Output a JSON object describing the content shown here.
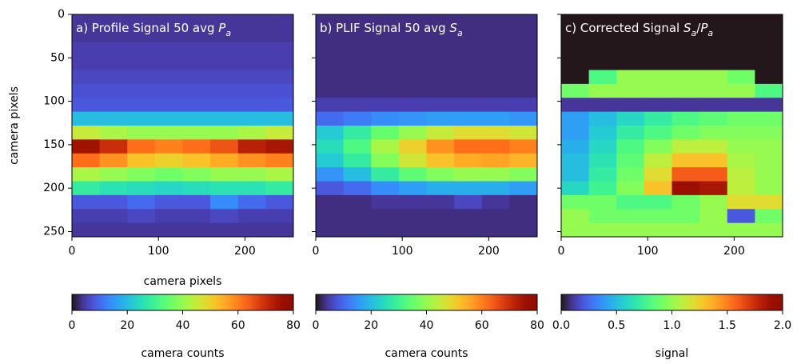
{
  "chart_data": [
    {
      "type": "heatmap",
      "colormap": "turbo",
      "title": [
        {
          "text": "a) Profile Signal 50 avg ",
          "style": "normal"
        },
        {
          "text": "P",
          "style": "italic"
        },
        {
          "text": "a",
          "style": "sub"
        }
      ],
      "xlabel": "camera pixels",
      "ylabel": "camera pixels",
      "ytick_labels": true,
      "x": [
        16,
        48,
        80,
        112,
        144,
        176,
        208,
        240
      ],
      "y": [
        8,
        24,
        40,
        56,
        72,
        88,
        104,
        120,
        136,
        152,
        168,
        184,
        200,
        216,
        232,
        248
      ],
      "values": [
        [
          4,
          4,
          4,
          4,
          4,
          4,
          4,
          4
        ],
        [
          4,
          4,
          4,
          4,
          4,
          4,
          4,
          4
        ],
        [
          5,
          5,
          5,
          5,
          5,
          5,
          5,
          5
        ],
        [
          5,
          5,
          5,
          5,
          5,
          5,
          5,
          5
        ],
        [
          6,
          6,
          6,
          6,
          6,
          6,
          6,
          6
        ],
        [
          7,
          7,
          7,
          7,
          7,
          7,
          7,
          7
        ],
        [
          8,
          8,
          8,
          8,
          8,
          8,
          8,
          8
        ],
        [
          20,
          20,
          20,
          20,
          20,
          20,
          20,
          20
        ],
        [
          45,
          42,
          40,
          40,
          40,
          40,
          42,
          45
        ],
        [
          75,
          70,
          62,
          60,
          62,
          65,
          72,
          74
        ],
        [
          62,
          58,
          52,
          50,
          52,
          55,
          58,
          60
        ],
        [
          42,
          40,
          38,
          36,
          38,
          40,
          40,
          42
        ],
        [
          28,
          26,
          25,
          24,
          25,
          26,
          26,
          28
        ],
        [
          8,
          8,
          10,
          8,
          8,
          14,
          10,
          8
        ],
        [
          5,
          5,
          6,
          5,
          5,
          6,
          5,
          5
        ],
        [
          4,
          4,
          4,
          4,
          4,
          4,
          4,
          4
        ]
      ],
      "xlim": [
        0,
        256
      ],
      "ylim": [
        0,
        256
      ],
      "xticks": [
        0,
        100,
        200
      ],
      "yticks": [
        0,
        50,
        100,
        150,
        200,
        250
      ],
      "clim": [
        0,
        80
      ],
      "cticks": [
        0,
        20,
        40,
        60,
        80
      ],
      "clabel": "camera counts"
    },
    {
      "type": "heatmap",
      "colormap": "turbo",
      "title": [
        {
          "text": "b) PLIF Signal 50 avg ",
          "style": "normal"
        },
        {
          "text": "S",
          "style": "italic"
        },
        {
          "text": "a",
          "style": "sub"
        }
      ],
      "ytick_labels": false,
      "x": [
        16,
        48,
        80,
        112,
        144,
        176,
        208,
        240
      ],
      "y": [
        8,
        24,
        40,
        56,
        72,
        88,
        104,
        120,
        136,
        152,
        168,
        184,
        200,
        216,
        232,
        248
      ],
      "values": [
        [
          3,
          3,
          3,
          3,
          3,
          3,
          3,
          3
        ],
        [
          3,
          3,
          3,
          3,
          3,
          3,
          3,
          3
        ],
        [
          3,
          3,
          3,
          3,
          3,
          3,
          3,
          3
        ],
        [
          3,
          3,
          3,
          3,
          3,
          3,
          3,
          3
        ],
        [
          3,
          3,
          3,
          3,
          3,
          3,
          3,
          3
        ],
        [
          3,
          3,
          3,
          3,
          3,
          3,
          3,
          3
        ],
        [
          5,
          5,
          5,
          5,
          5,
          5,
          5,
          5
        ],
        [
          10,
          12,
          14,
          15,
          16,
          16,
          16,
          15
        ],
        [
          22,
          28,
          35,
          40,
          45,
          48,
          48,
          46
        ],
        [
          25,
          32,
          42,
          50,
          58,
          62,
          62,
          60
        ],
        [
          22,
          28,
          38,
          46,
          52,
          55,
          56,
          54
        ],
        [
          15,
          20,
          28,
          34,
          38,
          40,
          40,
          38
        ],
        [
          8,
          10,
          14,
          16,
          18,
          18,
          18,
          16
        ],
        [
          3,
          3,
          4,
          4,
          4,
          6,
          4,
          3
        ],
        [
          3,
          3,
          3,
          3,
          3,
          3,
          3,
          3
        ],
        [
          3,
          3,
          3,
          3,
          3,
          3,
          3,
          3
        ]
      ],
      "xlim": [
        0,
        256
      ],
      "ylim": [
        0,
        256
      ],
      "xticks": [
        0,
        100,
        200
      ],
      "yticks": [
        0,
        50,
        100,
        150,
        200,
        250
      ],
      "clim": [
        0,
        80
      ],
      "cticks": [
        0,
        20,
        40,
        60,
        80
      ],
      "clabel": "camera counts"
    },
    {
      "type": "heatmap",
      "colormap": "turbo",
      "title": [
        {
          "text": "c) Corrected Signal ",
          "style": "normal"
        },
        {
          "text": "S",
          "style": "italic"
        },
        {
          "text": "a",
          "style": "sub"
        },
        {
          "text": "/",
          "style": "normal"
        },
        {
          "text": "P",
          "style": "italic"
        },
        {
          "text": "a",
          "style": "sub"
        }
      ],
      "ytick_labels": false,
      "x": [
        16,
        48,
        80,
        112,
        144,
        176,
        208,
        240
      ],
      "y": [
        8,
        24,
        40,
        56,
        72,
        88,
        104,
        120,
        136,
        152,
        168,
        184,
        200,
        216,
        232,
        248
      ],
      "values": [
        [
          0,
          0,
          0,
          0,
          0,
          0,
          0,
          0
        ],
        [
          0,
          0,
          0,
          0,
          0,
          0,
          0,
          0
        ],
        [
          0,
          0,
          0,
          0,
          0,
          0,
          0,
          0
        ],
        [
          0,
          0,
          0,
          0,
          0,
          0,
          0,
          0
        ],
        [
          0,
          0.8,
          1.0,
          1.0,
          1.0,
          1.0,
          0.9,
          0
        ],
        [
          0.9,
          1.0,
          1.0,
          1.0,
          1.0,
          1.0,
          1.0,
          0.8
        ],
        [
          0.1,
          0.1,
          0.1,
          0.1,
          0.1,
          0.1,
          0.1,
          0.1
        ],
        [
          0.4,
          0.5,
          0.6,
          0.7,
          0.8,
          0.85,
          0.9,
          0.9
        ],
        [
          0.4,
          0.55,
          0.7,
          0.8,
          0.9,
          0.95,
          0.95,
          0.95
        ],
        [
          0.45,
          0.6,
          0.8,
          0.95,
          1.1,
          1.1,
          1.0,
          1.0
        ],
        [
          0.5,
          0.65,
          0.85,
          1.1,
          1.3,
          1.3,
          1.05,
          1.0
        ],
        [
          0.5,
          0.7,
          0.9,
          1.2,
          1.6,
          1.6,
          1.1,
          1.0
        ],
        [
          0.6,
          0.75,
          0.95,
          1.3,
          1.9,
          1.85,
          1.1,
          1.0
        ],
        [
          0.9,
          0.9,
          0.8,
          0.8,
          0.9,
          1.0,
          1.2,
          1.2
        ],
        [
          1.0,
          0.9,
          0.9,
          0.9,
          0.9,
          1.0,
          0.2,
          0.9
        ],
        [
          1.0,
          1.0,
          1.0,
          1.0,
          1.0,
          1.0,
          1.0,
          1.0
        ]
      ],
      "xlim": [
        0,
        256
      ],
      "ylim": [
        0,
        256
      ],
      "xticks": [
        0,
        100,
        200
      ],
      "yticks": [
        0,
        50,
        100,
        150,
        200,
        250
      ],
      "clim": [
        0,
        2
      ],
      "cticks": [
        {
          "value": 0,
          "label": "0.0"
        },
        {
          "value": 0.5,
          "label": "0.5"
        },
        {
          "value": 1,
          "label": "1.0"
        },
        {
          "value": 1.5,
          "label": "1.5"
        },
        {
          "value": 2,
          "label": "2.0"
        }
      ],
      "clabel": "signal"
    }
  ]
}
